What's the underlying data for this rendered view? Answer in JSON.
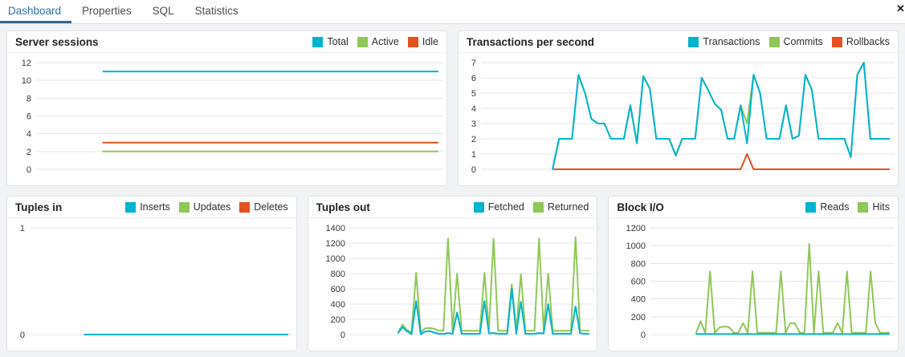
{
  "tab_bar": {
    "tabs": [
      {
        "label": "Dashboard",
        "active": true
      },
      {
        "label": "Properties",
        "active": false
      },
      {
        "label": "SQL",
        "active": false
      },
      {
        "label": "Statistics",
        "active": false
      }
    ],
    "close_icon": "close-x"
  },
  "colors": {
    "cyan": "#00b4cf",
    "green": "#8fc857",
    "orange": "#e4501e",
    "active_tab_text": "#2c6fad",
    "active_tab_underline": "#326690"
  },
  "panels": [
    {
      "title": "Server sessions",
      "chart_data": {
        "type": "line",
        "legend_position": "top-right",
        "grid": true,
        "yticks": [
          0,
          2,
          4,
          6,
          8,
          10,
          12
        ],
        "ylim": [
          0,
          12
        ],
        "x_start": 0.165,
        "series": [
          {
            "name": "Total",
            "color": "#00b4cf",
            "values": [
              11,
              11
            ]
          },
          {
            "name": "Active",
            "color": "#8fc857",
            "values": [
              2,
              2
            ]
          },
          {
            "name": "Idle",
            "color": "#e4501e",
            "values": [
              3,
              3
            ]
          }
        ]
      }
    },
    {
      "title": "Transactions per second",
      "chart_data": {
        "type": "line",
        "legend_position": "top-right",
        "grid": true,
        "yticks": [
          0,
          1,
          2,
          3,
          4,
          5,
          6,
          7
        ],
        "ylim": [
          0,
          7
        ],
        "x_start": 0.175,
        "series": [
          {
            "name": "Transactions",
            "color": "#00b4cf",
            "values": [
              0,
              2,
              2,
              2,
              6.2,
              5,
              3.3,
              3,
              3,
              2,
              2,
              2,
              4.2,
              1.7,
              6.1,
              5.3,
              2,
              2,
              2,
              0.9,
              2,
              2,
              2,
              6,
              5.2,
              4.3,
              3.9,
              2,
              2,
              4.2,
              1.7,
              6.2,
              5,
              2,
              2,
              2,
              4.2,
              2,
              2.2,
              6.2,
              5.2,
              2,
              2,
              2,
              2,
              2,
              0.8,
              6.2,
              7,
              2,
              2,
              2,
              2
            ]
          },
          {
            "name": "Commits",
            "color": "#8fc857",
            "values": [
              0,
              2,
              2,
              2,
              6.2,
              5,
              3.3,
              3,
              3,
              2,
              2,
              2,
              4.2,
              1.7,
              6.1,
              5.3,
              2,
              2,
              2,
              0.9,
              2,
              2,
              2,
              6,
              5.2,
              4.3,
              3.9,
              2,
              2,
              4.2,
              3,
              6.2,
              5,
              2,
              2,
              2,
              4.2,
              2,
              2.2,
              6.2,
              5.2,
              2,
              2,
              2,
              2,
              2,
              0.8,
              6.2,
              7,
              2,
              2,
              2,
              2
            ]
          },
          {
            "name": "Rollbacks",
            "color": "#e4501e",
            "values": [
              0,
              0,
              0,
              0,
              0,
              0,
              0,
              0,
              0,
              0,
              0,
              0,
              0,
              0,
              0,
              0,
              0,
              0,
              0,
              0,
              0,
              0,
              0,
              0,
              0,
              0,
              0,
              0,
              0,
              0,
              1,
              0,
              0,
              0,
              0,
              0,
              0,
              0,
              0,
              0,
              0,
              0,
              0,
              0,
              0,
              0,
              0,
              0,
              0,
              0,
              0,
              0,
              0
            ]
          }
        ]
      }
    },
    {
      "title": "Tuples in",
      "chart_data": {
        "type": "line",
        "legend_position": "top-right",
        "grid": true,
        "yticks": [
          0,
          1
        ],
        "ylim": [
          0,
          1
        ],
        "x_start": 0.21,
        "series": [
          {
            "name": "Inserts",
            "color": "#00b4cf",
            "values": [
              0,
              0
            ]
          },
          {
            "name": "Updates",
            "color": "#8fc857",
            "values": [
              0,
              0
            ]
          },
          {
            "name": "Deletes",
            "color": "#e4501e",
            "values": [
              0,
              0
            ]
          }
        ]
      }
    },
    {
      "title": "Tuples out",
      "chart_data": {
        "type": "line",
        "legend_position": "top-right",
        "grid": true,
        "yticks": [
          0,
          200,
          400,
          600,
          800,
          1000,
          1200,
          1400
        ],
        "ylim": [
          0,
          1400
        ],
        "x_start": 0.2,
        "series": [
          {
            "name": "Fetched",
            "color": "#00b4cf",
            "values": [
              15,
              100,
              40,
              5,
              440,
              5,
              40,
              45,
              25,
              10,
              10,
              20,
              10,
              290,
              10,
              10,
              10,
              10,
              10,
              440,
              15,
              20,
              10,
              10,
              10,
              600,
              10,
              430,
              10,
              10,
              10,
              20,
              15,
              400,
              10,
              10,
              10,
              10,
              10,
              370,
              20,
              10,
              10
            ]
          },
          {
            "name": "Returned",
            "color": "#8fc857",
            "values": [
              20,
              130,
              60,
              30,
              810,
              30,
              80,
              85,
              75,
              50,
              50,
              1260,
              50,
              800,
              50,
              50,
              50,
              50,
              50,
              810,
              55,
              1260,
              50,
              50,
              50,
              660,
              50,
              790,
              50,
              50,
              50,
              1260,
              55,
              800,
              50,
              50,
              50,
              50,
              50,
              1280,
              60,
              50,
              50
            ]
          }
        ]
      }
    },
    {
      "title": "Block I/O",
      "chart_data": {
        "type": "line",
        "legend_position": "top-right",
        "grid": true,
        "yticks": [
          0,
          200,
          400,
          600,
          800,
          1000,
          1200
        ],
        "ylim": [
          0,
          1200
        ],
        "x_start": 0.19,
        "series": [
          {
            "name": "Reads",
            "color": "#00b4cf",
            "values": [
              5,
              5
            ]
          },
          {
            "name": "Hits",
            "color": "#8fc857",
            "values": [
              10,
              150,
              20,
              710,
              20,
              80,
              90,
              85,
              20,
              20,
              130,
              20,
              710,
              20,
              20,
              20,
              20,
              20,
              710,
              20,
              130,
              125,
              20,
              20,
              1020,
              20,
              710,
              20,
              20,
              20,
              130,
              20,
              710,
              20,
              20,
              20,
              20,
              710,
              130,
              20,
              20,
              20
            ]
          }
        ]
      }
    }
  ]
}
